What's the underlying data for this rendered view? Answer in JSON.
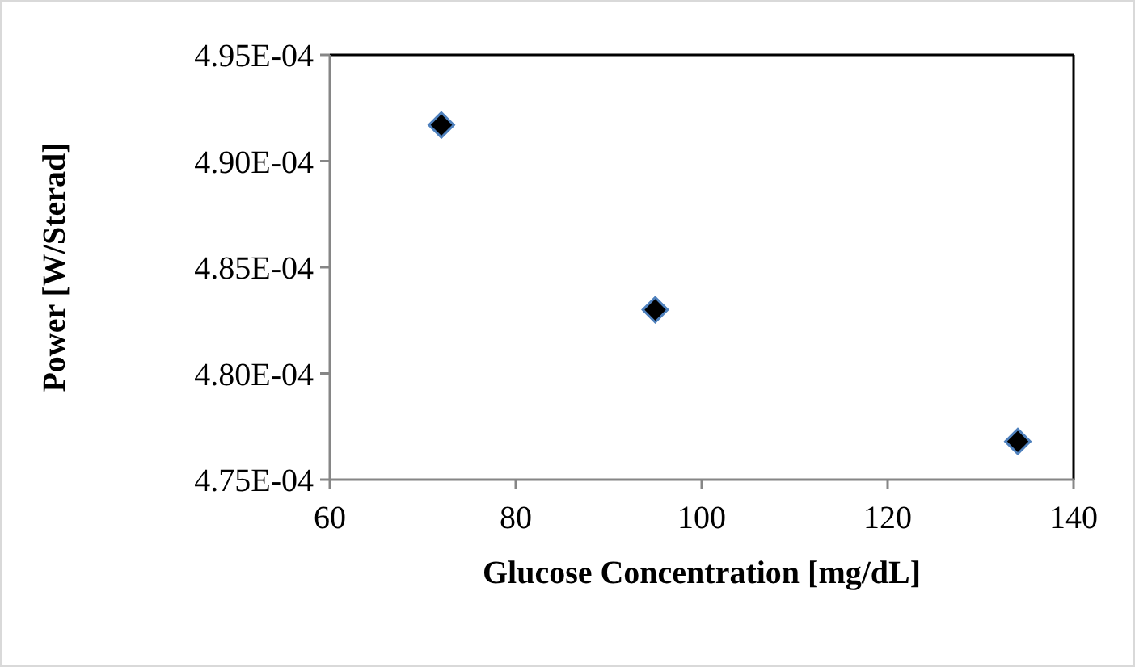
{
  "chart_data": {
    "type": "scatter",
    "xlabel": "Glucose Concentration [mg/dL]",
    "ylabel": "Power [W/Sterad]",
    "x": [
      72,
      95,
      134
    ],
    "values": [
      0.0004917,
      0.000483,
      0.0004768
    ],
    "color": "#000000",
    "marker": "diamond",
    "grid": false,
    "xlim": [
      60,
      140
    ],
    "xticks": [
      60,
      80,
      100,
      120,
      140
    ],
    "ylim": [
      0.000475,
      0.000495
    ],
    "yticks": [
      {
        "value": 0.000475,
        "label": "4.75E-04"
      },
      {
        "value": 0.00048,
        "label": "4.80E-04"
      },
      {
        "value": 0.000485,
        "label": "4.85E-04"
      },
      {
        "value": 0.00049,
        "label": "4.90E-04"
      },
      {
        "value": 0.000495,
        "label": "4.95E-04"
      }
    ]
  }
}
